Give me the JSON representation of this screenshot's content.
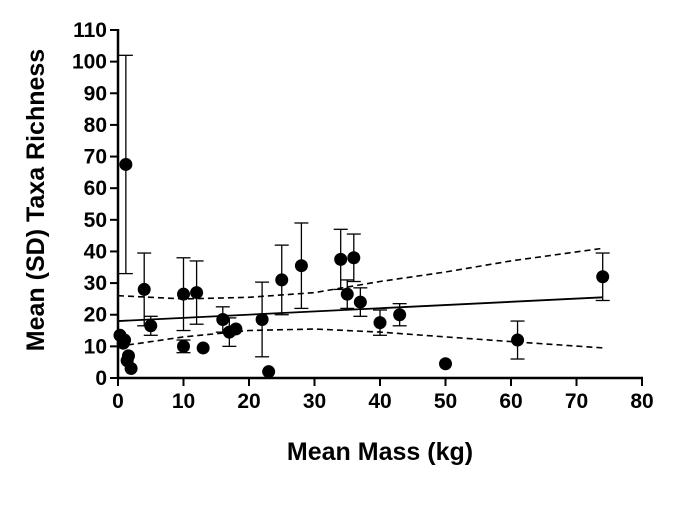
{
  "chart_data": {
    "type": "scatter",
    "xlabel": "Mean Mass (kg)",
    "ylabel": "Mean (SD) Taxa Richness",
    "xlim": [
      0,
      80
    ],
    "ylim": [
      0,
      110
    ],
    "x_ticks": [
      0,
      10,
      20,
      30,
      40,
      50,
      60,
      70,
      80
    ],
    "y_ticks": [
      0,
      10,
      20,
      30,
      40,
      50,
      60,
      70,
      80,
      90,
      100,
      110
    ],
    "grid": false,
    "points": [
      {
        "x": 0.3,
        "y": 13.5,
        "sd": null
      },
      {
        "x": 0.8,
        "y": 11.0,
        "sd": null
      },
      {
        "x": 1.0,
        "y": 12.0,
        "sd": null
      },
      {
        "x": 1.2,
        "y": 67.5,
        "sd": 34.5
      },
      {
        "x": 1.4,
        "y": 5.5,
        "sd": null
      },
      {
        "x": 1.6,
        "y": 7.0,
        "sd": null
      },
      {
        "x": 2.0,
        "y": 3.0,
        "sd": null
      },
      {
        "x": 4.0,
        "y": 28.0,
        "sd": 11.5
      },
      {
        "x": 5.0,
        "y": 16.5,
        "sd": 3.0
      },
      {
        "x": 10.0,
        "y": 10.0,
        "sd": 2.0
      },
      {
        "x": 10.0,
        "y": 26.5,
        "sd": 11.5
      },
      {
        "x": 12.0,
        "y": 27.0,
        "sd": 10.0
      },
      {
        "x": 13.0,
        "y": 9.5,
        "sd": null
      },
      {
        "x": 16.0,
        "y": 18.5,
        "sd": 4.0
      },
      {
        "x": 17.0,
        "y": 14.5,
        "sd": 4.5
      },
      {
        "x": 18.0,
        "y": 15.5,
        "sd": null
      },
      {
        "x": 22.0,
        "y": 18.5,
        "sd": 11.8
      },
      {
        "x": 23.0,
        "y": 2.0,
        "sd": null
      },
      {
        "x": 25.0,
        "y": 31.0,
        "sd": 11.0
      },
      {
        "x": 28.0,
        "y": 35.5,
        "sd": 13.5
      },
      {
        "x": 34.0,
        "y": 37.5,
        "sd": 9.5
      },
      {
        "x": 35.0,
        "y": 26.5,
        "sd": 4.5
      },
      {
        "x": 36.0,
        "y": 38.0,
        "sd": 7.5
      },
      {
        "x": 37.0,
        "y": 24.0,
        "sd": 4.5
      },
      {
        "x": 40.0,
        "y": 17.5,
        "sd": 4.0
      },
      {
        "x": 43.0,
        "y": 20.0,
        "sd": 3.5
      },
      {
        "x": 50.0,
        "y": 4.5,
        "sd": null
      },
      {
        "x": 61.0,
        "y": 12.0,
        "sd": 6.0
      },
      {
        "x": 74.0,
        "y": 32.0,
        "sd": 7.5
      }
    ],
    "regression_line": [
      [
        0,
        18.0
      ],
      [
        74,
        25.5
      ]
    ],
    "ci_upper": [
      [
        0,
        26.0
      ],
      [
        10,
        25.0
      ],
      [
        20,
        25.5
      ],
      [
        30,
        27.0
      ],
      [
        40,
        30.5
      ],
      [
        50,
        33.5
      ],
      [
        60,
        37.0
      ],
      [
        74,
        41.0
      ]
    ],
    "ci_lower": [
      [
        0,
        10.0
      ],
      [
        10,
        13.0
      ],
      [
        20,
        15.0
      ],
      [
        30,
        15.5
      ],
      [
        40,
        14.5
      ],
      [
        50,
        13.0
      ],
      [
        60,
        11.5
      ],
      [
        74,
        9.5
      ]
    ]
  }
}
